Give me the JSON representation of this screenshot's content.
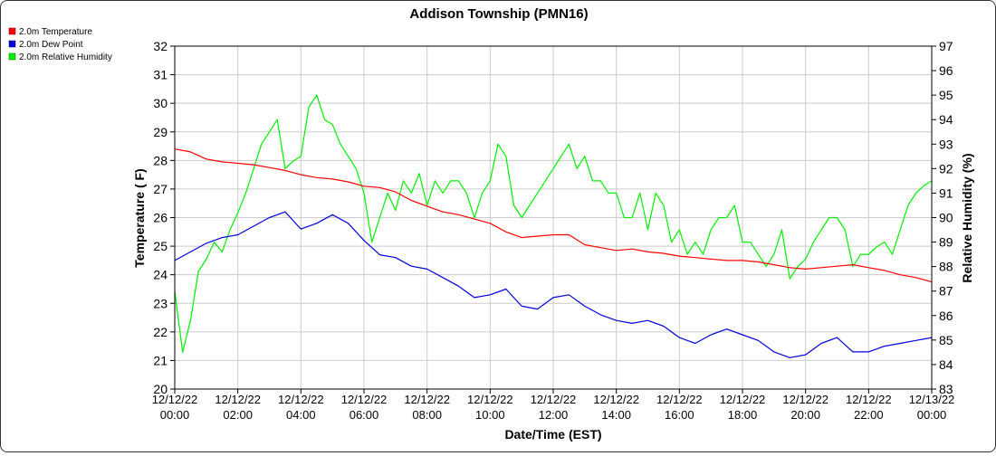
{
  "chart_data": {
    "type": "line",
    "title": "Addison Township (PMN16)",
    "xlabel": "Date/Time (EST)",
    "ylabel_left": "Temperature ( F)",
    "ylabel_right": "Relative Humidity (%)",
    "ylim_left": [
      20,
      32
    ],
    "ylim_right": [
      83,
      97
    ],
    "xlim_hours": [
      0,
      24
    ],
    "grid": true,
    "legend_position": "top-left",
    "x_ticks": [
      {
        "h": 0,
        "date": "12/12/22",
        "time": "00:00"
      },
      {
        "h": 2,
        "date": "12/12/22",
        "time": "02:00"
      },
      {
        "h": 4,
        "date": "12/12/22",
        "time": "04:00"
      },
      {
        "h": 6,
        "date": "12/12/22",
        "time": "06:00"
      },
      {
        "h": 8,
        "date": "12/12/22",
        "time": "08:00"
      },
      {
        "h": 10,
        "date": "12/12/22",
        "time": "10:00"
      },
      {
        "h": 12,
        "date": "12/12/22",
        "time": "12:00"
      },
      {
        "h": 14,
        "date": "12/12/22",
        "time": "14:00"
      },
      {
        "h": 16,
        "date": "12/12/22",
        "time": "16:00"
      },
      {
        "h": 18,
        "date": "12/12/22",
        "time": "18:00"
      },
      {
        "h": 20,
        "date": "12/12/22",
        "time": "20:00"
      },
      {
        "h": 22,
        "date": "12/12/22",
        "time": "22:00"
      },
      {
        "h": 24,
        "date": "12/13/22",
        "time": "00:00"
      }
    ],
    "y_ticks_left": [
      20,
      21,
      22,
      23,
      24,
      25,
      26,
      27,
      28,
      29,
      30,
      31,
      32
    ],
    "y_ticks_right": [
      83,
      84,
      85,
      86,
      87,
      88,
      89,
      90,
      91,
      92,
      93,
      94,
      95,
      96,
      97
    ],
    "series": [
      {
        "name": "2.0m Temperature",
        "color": "#ff0000",
        "axis": "left",
        "x_hours": [
          0,
          0.5,
          1,
          1.5,
          2,
          2.5,
          3,
          3.5,
          4,
          4.5,
          5,
          5.5,
          6,
          6.5,
          7,
          7.5,
          8,
          8.5,
          9,
          9.5,
          10,
          10.5,
          11,
          11.5,
          12,
          12.5,
          13,
          13.5,
          14,
          14.5,
          15,
          15.5,
          16,
          16.5,
          17,
          17.5,
          18,
          18.5,
          19,
          19.5,
          20,
          20.5,
          21,
          21.5,
          22,
          22.5,
          23,
          23.5,
          24
        ],
        "values": [
          28.4,
          28.3,
          28.05,
          27.95,
          27.9,
          27.85,
          27.75,
          27.65,
          27.5,
          27.4,
          27.35,
          27.25,
          27.1,
          27.05,
          26.9,
          26.6,
          26.4,
          26.2,
          26.1,
          25.95,
          25.8,
          25.5,
          25.3,
          25.35,
          25.4,
          25.4,
          25.05,
          24.95,
          24.85,
          24.9,
          24.8,
          24.75,
          24.65,
          24.6,
          24.55,
          24.5,
          24.5,
          24.45,
          24.35,
          24.25,
          24.2,
          24.25,
          24.3,
          24.35,
          24.25,
          24.15,
          24.0,
          23.9,
          23.75
        ]
      },
      {
        "name": "2.0m Dew Point",
        "color": "#0000dd",
        "axis": "left",
        "x_hours": [
          0,
          0.5,
          1,
          1.5,
          2,
          2.5,
          3,
          3.5,
          4,
          4.5,
          5,
          5.5,
          6,
          6.5,
          7,
          7.5,
          8,
          8.5,
          9,
          9.5,
          10,
          10.5,
          11,
          11.5,
          12,
          12.5,
          13,
          13.5,
          14,
          14.5,
          15,
          15.5,
          16,
          16.5,
          17,
          17.5,
          18,
          18.5,
          19,
          19.5,
          20,
          20.5,
          21,
          21.5,
          22,
          22.5,
          23,
          23.5,
          24
        ],
        "values": [
          24.5,
          24.8,
          25.1,
          25.3,
          25.4,
          25.7,
          26.0,
          26.2,
          25.6,
          25.8,
          26.1,
          25.8,
          25.2,
          24.7,
          24.6,
          24.3,
          24.2,
          23.9,
          23.6,
          23.2,
          23.3,
          23.5,
          22.9,
          22.8,
          23.2,
          23.3,
          22.9,
          22.6,
          22.4,
          22.3,
          22.4,
          22.2,
          21.8,
          21.6,
          21.9,
          22.1,
          21.9,
          21.7,
          21.3,
          21.1,
          21.2,
          21.6,
          21.8,
          21.3,
          21.3,
          21.5,
          21.6,
          21.7,
          21.8
        ]
      },
      {
        "name": "2.0m Relative Humidity",
        "color": "#00ee00",
        "axis": "right",
        "x_hours": [
          0,
          0.25,
          0.5,
          0.75,
          1,
          1.25,
          1.5,
          1.75,
          2,
          2.25,
          2.5,
          2.75,
          3,
          3.25,
          3.5,
          3.75,
          4,
          4.25,
          4.5,
          4.75,
          5,
          5.25,
          5.5,
          5.75,
          6,
          6.25,
          6.5,
          6.75,
          7,
          7.25,
          7.5,
          7.75,
          8,
          8.25,
          8.5,
          8.75,
          9,
          9.25,
          9.5,
          9.75,
          10,
          10.25,
          10.5,
          10.75,
          11,
          11.25,
          11.5,
          11.75,
          12,
          12.25,
          12.5,
          12.75,
          13,
          13.25,
          13.5,
          13.75,
          14,
          14.25,
          14.5,
          14.75,
          15,
          15.25,
          15.5,
          15.75,
          16,
          16.25,
          16.5,
          16.75,
          17,
          17.25,
          17.5,
          17.75,
          18,
          18.25,
          18.5,
          18.75,
          19,
          19.25,
          19.5,
          19.75,
          20,
          20.25,
          20.5,
          20.75,
          21,
          21.25,
          21.5,
          21.75,
          22,
          22.25,
          22.5,
          22.75,
          23,
          23.25,
          23.5,
          23.75,
          24
        ],
        "values": [
          87.0,
          84.5,
          85.8,
          87.8,
          88.3,
          89.0,
          88.6,
          89.5,
          90.2,
          91.0,
          92.0,
          93.0,
          93.5,
          94.0,
          92.0,
          92.3,
          92.5,
          94.5,
          95.0,
          94.0,
          93.8,
          93.0,
          92.5,
          92.0,
          91.0,
          89.0,
          90.0,
          91.0,
          90.3,
          91.5,
          91.0,
          91.8,
          90.5,
          91.5,
          91.0,
          91.5,
          91.5,
          91.0,
          90.0,
          91.0,
          91.5,
          93.0,
          92.5,
          90.5,
          90.0,
          90.5,
          91.0,
          91.5,
          92.0,
          92.5,
          93.0,
          92.0,
          92.5,
          91.5,
          91.5,
          91.0,
          91.0,
          90.0,
          90.0,
          91.0,
          89.5,
          91.0,
          90.5,
          89.0,
          89.5,
          88.5,
          89.0,
          88.5,
          89.5,
          90.0,
          90.0,
          90.5,
          89.0,
          89.0,
          88.5,
          88.0,
          88.5,
          89.5,
          87.5,
          88.0,
          88.3,
          89.0,
          89.5,
          90.0,
          90.0,
          89.5,
          88.0,
          88.5,
          88.5,
          88.8,
          89.0,
          88.5,
          89.5,
          90.5,
          91.0,
          91.3,
          91.5
        ]
      }
    ]
  }
}
